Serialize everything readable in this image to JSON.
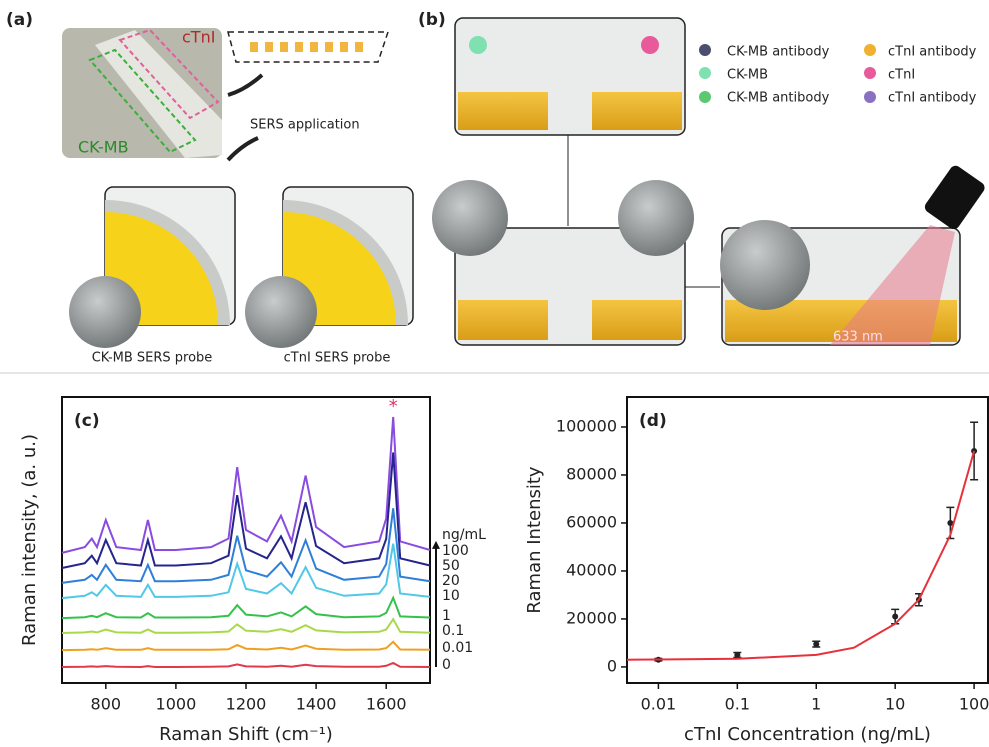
{
  "panels": {
    "a": {
      "label": "(a)",
      "chip_top": "cTnI",
      "chip_bottom": "CK-MB",
      "step": "SERS application",
      "probe_left": "CK-MB SERS probe",
      "probe_right": "cTnI SERS probe"
    },
    "b": {
      "label": "(b)",
      "legend": [
        "CK-MB antibody",
        "CK-MB",
        "CK-MB antibody",
        "cTnI antibody",
        "cTnI",
        "cTnI antibody"
      ],
      "laser": "633 nm"
    }
  },
  "chart_data": [
    {
      "type": "line",
      "panel_label": "(c)",
      "x_label": "Raman Shift (cm⁻¹)",
      "y_label": "Raman intensity, (a. u.)",
      "legend_title": "ng/mL",
      "annotation": "*",
      "x": [
        675,
        740,
        760,
        775,
        800,
        830,
        900,
        920,
        940,
        1000,
        1100,
        1150,
        1175,
        1200,
        1260,
        1300,
        1330,
        1370,
        1400,
        1480,
        1580,
        1600,
        1620,
        1640,
        1725
      ],
      "xlim": [
        675,
        1725
      ],
      "xticks": [
        800,
        1000,
        1200,
        1400,
        1600
      ],
      "ylim": [
        0,
        100
      ],
      "series": [
        {
          "name": "100",
          "color": "#8a4be0",
          "values": [
            45.5,
            47.5,
            50.5,
            47.5,
            57,
            47.5,
            46.5,
            57,
            46.5,
            46.5,
            47.5,
            50.5,
            75.5,
            53.5,
            49.5,
            58.5,
            49.5,
            72.5,
            54.5,
            47.5,
            49.5,
            57.5,
            93,
            49.5,
            46.5
          ]
        },
        {
          "name": "50",
          "color": "#25258c",
          "values": [
            40.2,
            41.9,
            44.5,
            41.9,
            50,
            41.9,
            41.1,
            50,
            41.1,
            41.1,
            41.9,
            44.5,
            65.7,
            47,
            43.6,
            51.3,
            43.6,
            63.2,
            47.9,
            41.9,
            43.6,
            50.4,
            80.6,
            43.6,
            41.1
          ]
        },
        {
          "name": "20",
          "color": "#2f7fd8",
          "values": [
            35,
            36.1,
            37.8,
            36.1,
            41.3,
            36.1,
            35.6,
            41.3,
            35.6,
            35.6,
            36.1,
            37.8,
            51.5,
            39.4,
            37.2,
            42.2,
            37.2,
            49.9,
            40,
            36.1,
            37.2,
            41.6,
            61.1,
            37.2,
            35.6
          ]
        },
        {
          "name": "10",
          "color": "#50c8e8",
          "values": [
            29.7,
            30.5,
            31.7,
            30.5,
            34.3,
            30.5,
            30.1,
            34.3,
            30.1,
            30.1,
            30.5,
            31.7,
            41.7,
            32.9,
            31.3,
            34.9,
            31.3,
            40.5,
            33.3,
            30.5,
            31.3,
            34.5,
            48.7,
            31.3,
            30.1
          ]
        },
        {
          "name": "1",
          "color": "#35c24a",
          "values": [
            22.7,
            23,
            23.5,
            23,
            24.4,
            23,
            22.9,
            24.4,
            22.9,
            22.9,
            23,
            23.5,
            27.2,
            23.9,
            23.3,
            24.7,
            23.3,
            26.8,
            24.1,
            23,
            23.3,
            24.5,
            29.8,
            23.3,
            22.9
          ]
        },
        {
          "name": "0.1",
          "color": "#a8d94a",
          "values": [
            17.5,
            17.7,
            18,
            17.7,
            18.7,
            17.7,
            17.6,
            18.7,
            17.6,
            17.6,
            17.7,
            18,
            20.5,
            18.3,
            17.9,
            18.8,
            17.9,
            20.2,
            18.4,
            17.7,
            17.9,
            18.7,
            22.3,
            17.9,
            17.6
          ]
        },
        {
          "name": "0.01",
          "color": "#f0a020",
          "values": [
            11.5,
            11.6,
            11.8,
            11.6,
            12.2,
            11.6,
            11.6,
            12.2,
            11.6,
            11.6,
            11.6,
            11.8,
            13.3,
            12,
            11.7,
            12.3,
            11.7,
            13.1,
            12,
            11.6,
            11.7,
            12.2,
            14.4,
            11.7,
            11.6
          ]
        },
        {
          "name": "0",
          "color": "#e03a4a",
          "values": [
            5.6,
            5.7,
            5.8,
            5.7,
            5.9,
            5.7,
            5.6,
            5.9,
            5.6,
            5.6,
            5.7,
            5.8,
            6.5,
            5.8,
            5.7,
            6,
            5.7,
            6.4,
            5.9,
            5.7,
            5.7,
            6,
            7,
            5.7,
            5.6
          ]
        }
      ]
    },
    {
      "type": "scatter",
      "panel_label": "(d)",
      "x_label": "cTnI Concentration (ng/mL)",
      "y_label": "Raman Intensity",
      "xscale": "log",
      "xlim": [
        0.004,
        150
      ],
      "xticks": [
        0.01,
        0.1,
        1,
        10,
        100
      ],
      "ylim": [
        -6700,
        112500
      ],
      "yticks": [
        0,
        20000,
        40000,
        60000,
        80000,
        100000
      ],
      "series": [
        {
          "style": "markers",
          "color": "#222222",
          "x": [
            0.01,
            0.1,
            1,
            10,
            20,
            50,
            100
          ],
          "values": [
            3000,
            5000,
            9500,
            21000,
            28000,
            60000,
            90000
          ],
          "errors": [
            500,
            1000,
            1200,
            3000,
            2500,
            6500,
            12000
          ]
        },
        {
          "style": "line",
          "color": "#e8303a",
          "x": [
            0.004,
            0.01,
            0.1,
            1,
            3,
            10,
            20,
            50,
            100
          ],
          "values": [
            3000,
            3100,
            3400,
            5000,
            8000,
            18000,
            28000,
            55000,
            90000
          ]
        }
      ]
    }
  ]
}
